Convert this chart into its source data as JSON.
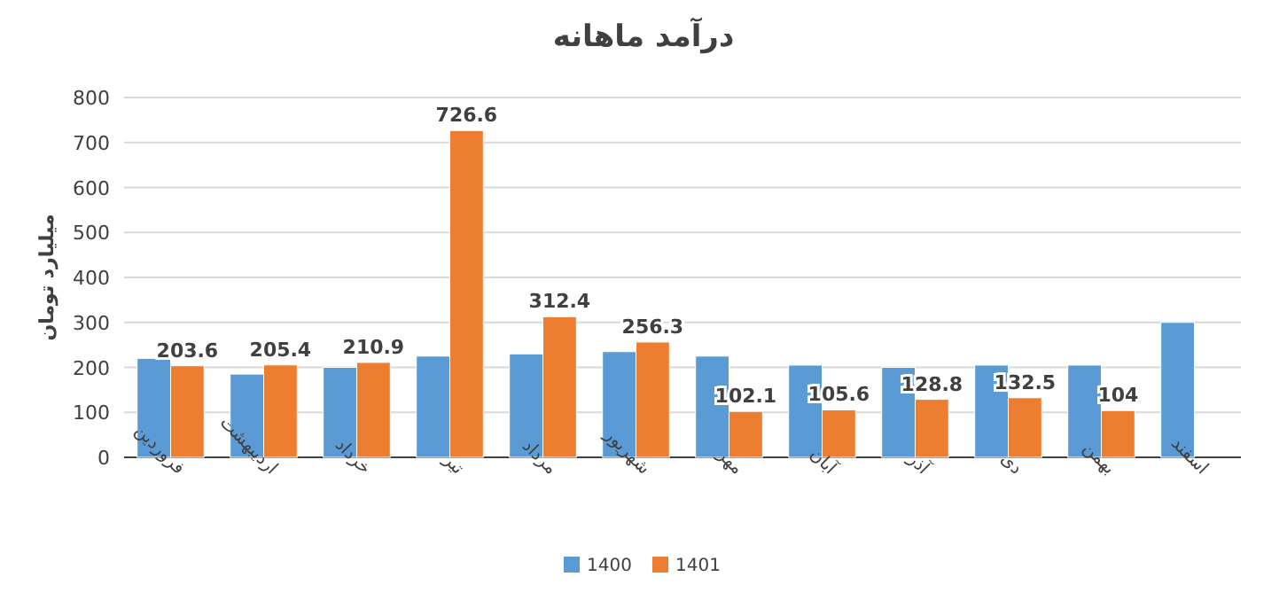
{
  "chart_data": {
    "type": "bar",
    "title": "درآمد ماهانه",
    "ylabel": "میلیارد تومان",
    "categories": [
      "فروردین",
      "اردیبهشت",
      "خرداد",
      "تیر",
      "مرداد",
      "شهریور",
      "مهر",
      "آبان",
      "آذر",
      "دی",
      "بهمن",
      "اسفند"
    ],
    "series": [
      {
        "name": "1400",
        "color": "#5b9bd5",
        "values": [
          220,
          185,
          200,
          225,
          230,
          235,
          225,
          205,
          200,
          205,
          205,
          300
        ]
      },
      {
        "name": "1401",
        "color": "#ed7d31",
        "values": [
          203.6,
          205.4,
          210.9,
          726.6,
          312.4,
          256.3,
          102.1,
          105.6,
          128.8,
          132.5,
          104,
          null
        ],
        "value_labels": [
          "203.6",
          "205.4",
          "210.9",
          "726.6",
          "312.4",
          "256.3",
          "102.1",
          "105.6",
          "128.8",
          "132.5",
          "104",
          null
        ]
      }
    ],
    "ylim": [
      0,
      800
    ],
    "yticks": [
      0,
      100,
      200,
      300,
      400,
      500,
      600,
      700,
      800
    ],
    "grid": "y",
    "legend": "bottom"
  }
}
